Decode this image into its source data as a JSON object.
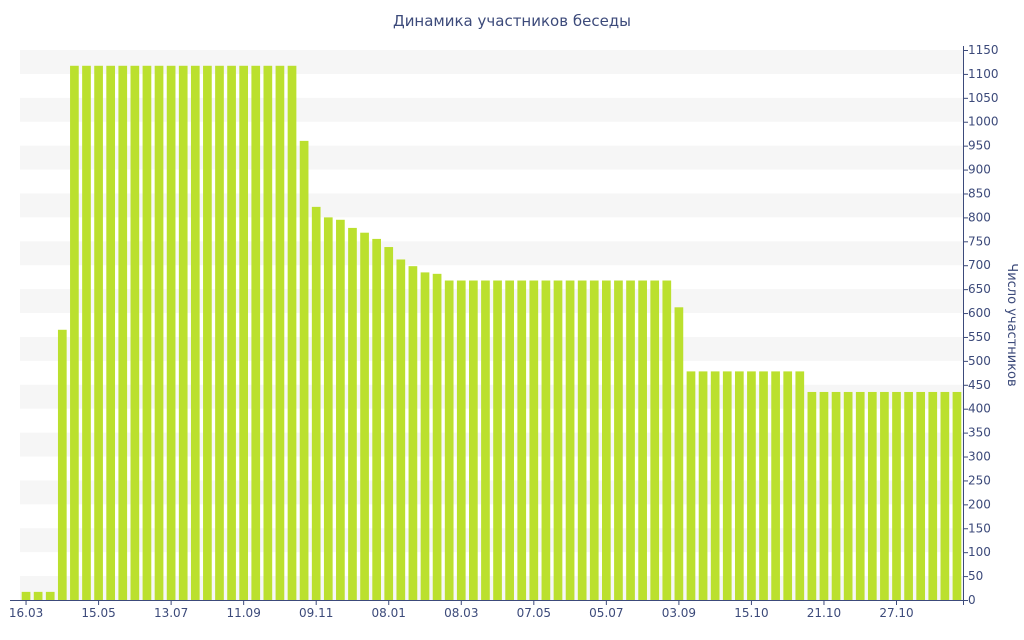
{
  "chart_data": {
    "type": "bar",
    "title": "Динамика участников беседы",
    "ylabel": "Число участников",
    "xlabel": "",
    "ylim": [
      0,
      1150
    ],
    "y_ticks": [
      0,
      50,
      100,
      150,
      200,
      250,
      300,
      350,
      400,
      450,
      500,
      550,
      600,
      650,
      700,
      750,
      800,
      850,
      900,
      950,
      1000,
      1050,
      1100,
      1150
    ],
    "x_tick_labels": [
      {
        "index": 0,
        "label": "16.03"
      },
      {
        "index": 6,
        "label": "15.05"
      },
      {
        "index": 12,
        "label": "13.07"
      },
      {
        "index": 18,
        "label": "11.09"
      },
      {
        "index": 24,
        "label": "09.11"
      },
      {
        "index": 30,
        "label": "08.01"
      },
      {
        "index": 36,
        "label": "08.03"
      },
      {
        "index": 42,
        "label": "07.05"
      },
      {
        "index": 48,
        "label": "05.07"
      },
      {
        "index": 54,
        "label": "03.09"
      },
      {
        "index": 60,
        "label": "15.10"
      },
      {
        "index": 66,
        "label": "21.10"
      },
      {
        "index": 72,
        "label": "27.10"
      }
    ],
    "values": [
      17,
      17,
      17,
      565,
      1117,
      1117,
      1117,
      1117,
      1117,
      1117,
      1117,
      1117,
      1117,
      1117,
      1117,
      1117,
      1117,
      1117,
      1117,
      1117,
      1117,
      1117,
      1117,
      960,
      822,
      800,
      795,
      778,
      768,
      755,
      738,
      712,
      698,
      685,
      682,
      668,
      668,
      668,
      668,
      668,
      668,
      668,
      668,
      668,
      668,
      668,
      668,
      668,
      668,
      668,
      668,
      668,
      668,
      668,
      612,
      478,
      478,
      478,
      478,
      478,
      478,
      478,
      478,
      478,
      478,
      435,
      435,
      435,
      435,
      435,
      435,
      435,
      435,
      435,
      435,
      435,
      435,
      435
    ],
    "bar_color": "#bbe02e",
    "band_color": "#f6f6f6",
    "axis_color": "#3c4a7a",
    "grid": "horizontal-bands",
    "y_axis_side": "right"
  }
}
